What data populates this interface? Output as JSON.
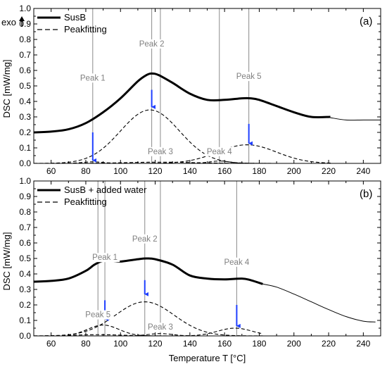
{
  "chart_data": [
    {
      "type": "line",
      "panel_label": "(a)",
      "xlim": [
        50,
        250
      ],
      "ylim": [
        0,
        1.0
      ],
      "x_ticks": [
        60,
        80,
        100,
        120,
        140,
        160,
        180,
        200,
        220,
        240
      ],
      "y_ticks": [
        0.0,
        0.1,
        0.2,
        0.3,
        0.4,
        0.5,
        0.6,
        0.7,
        0.8,
        0.9,
        1.0
      ],
      "ylabel": "DSC [mW/mg]",
      "xlabel": "",
      "exo_label": "exo",
      "legend": [
        "SusB",
        "Peakfitting"
      ],
      "legend_position": "top-left",
      "series": [
        {
          "name": "SusB",
          "style": "solid-thick",
          "x": [
            50,
            60,
            70,
            80,
            90,
            100,
            110,
            115,
            118,
            122,
            130,
            140,
            150,
            160,
            170,
            175,
            180,
            190,
            200,
            210,
            221
          ],
          "y": [
            0.2,
            0.205,
            0.22,
            0.26,
            0.33,
            0.42,
            0.53,
            0.57,
            0.58,
            0.57,
            0.52,
            0.45,
            0.41,
            0.41,
            0.42,
            0.42,
            0.41,
            0.37,
            0.33,
            0.3,
            0.3
          ]
        },
        {
          "name": "SusB tail",
          "style": "solid-thin",
          "x": [
            221,
            230,
            240,
            250
          ],
          "y": [
            0.295,
            0.28,
            0.28,
            0.28
          ]
        },
        {
          "name": "Peakfitting 1",
          "style": "dashed",
          "gauss": {
            "a": 0.01,
            "mu": 84,
            "sigma": 6
          },
          "x_range": [
            50,
            222
          ]
        },
        {
          "name": "Peakfitting 2",
          "style": "dashed",
          "gauss": {
            "a": 0.345,
            "mu": 117,
            "sigma": 17
          },
          "x_range": [
            50,
            222
          ]
        },
        {
          "name": "Peakfitting 3",
          "style": "dashed",
          "gauss": {
            "a": 0.008,
            "mu": 123,
            "sigma": 20
          },
          "x_range": [
            50,
            222
          ]
        },
        {
          "name": "Peakfitting 4",
          "style": "dashed",
          "gauss": {
            "a": 0.015,
            "mu": 157,
            "sigma": 6
          },
          "x_range": [
            50,
            222
          ]
        },
        {
          "name": "Peakfitting 5",
          "style": "dashed",
          "gauss": {
            "a": 0.12,
            "mu": 173,
            "sigma": 17
          },
          "x_range": [
            50,
            222
          ]
        }
      ],
      "peak_markers": [
        {
          "label": "Peak 1",
          "x": 84,
          "arrow_top": 0.2,
          "arrow_tip": 0.01,
          "label_y": 0.535
        },
        {
          "label": "Peak 2",
          "x": 118,
          "arrow_top": 0.475,
          "arrow_tip": 0.355,
          "label_y": 0.755
        },
        {
          "label": "Peak 3",
          "x": 123,
          "label_y": 0.06
        },
        {
          "label": "Peak 4",
          "x": 157,
          "label_y": 0.06
        },
        {
          "label": "Peak 5",
          "x": 174,
          "arrow_top": 0.255,
          "arrow_tip": 0.12,
          "label_y": 0.545
        }
      ]
    },
    {
      "type": "line",
      "panel_label": "(b)",
      "xlim": [
        50,
        250
      ],
      "ylim": [
        0,
        1.0
      ],
      "x_ticks": [
        60,
        80,
        100,
        120,
        140,
        160,
        180,
        200,
        220,
        240
      ],
      "y_ticks": [
        0.0,
        0.1,
        0.2,
        0.3,
        0.4,
        0.5,
        0.6,
        0.7,
        0.8,
        0.9,
        1.0
      ],
      "ylabel": "DSC [mW/mg]",
      "xlabel": "Temperature T [°C]",
      "legend": [
        "SusB + added water",
        "Peakfitting"
      ],
      "legend_position": "top-left",
      "series": [
        {
          "name": "SusB + added water",
          "style": "solid-thick",
          "x": [
            50,
            60,
            70,
            80,
            85,
            90,
            95,
            100,
            110,
            115,
            120,
            130,
            140,
            150,
            160,
            170,
            175,
            182
          ],
          "y": [
            0.35,
            0.355,
            0.37,
            0.42,
            0.46,
            0.485,
            0.485,
            0.48,
            0.495,
            0.5,
            0.495,
            0.46,
            0.39,
            0.37,
            0.365,
            0.37,
            0.36,
            0.335
          ]
        },
        {
          "name": "SusB + added water tail",
          "style": "solid-thin",
          "x": [
            182,
            190,
            200,
            210,
            220,
            230,
            240,
            247
          ],
          "y": [
            0.335,
            0.315,
            0.27,
            0.22,
            0.17,
            0.125,
            0.095,
            0.09
          ]
        },
        {
          "name": "Peakfitting 1",
          "style": "dashed",
          "gauss": {
            "a": 0.07,
            "mu": 90,
            "sigma": 9
          },
          "x_range": [
            50,
            182
          ]
        },
        {
          "name": "Peakfitting 2",
          "style": "dashed",
          "gauss": {
            "a": 0.22,
            "mu": 114,
            "sigma": 17
          },
          "x_range": [
            50,
            182
          ]
        },
        {
          "name": "Peakfitting 3",
          "style": "dashed",
          "gauss": {
            "a": 0.015,
            "mu": 123,
            "sigma": 7
          },
          "x_range": [
            50,
            182
          ]
        },
        {
          "name": "Peakfitting 4",
          "style": "dashed",
          "gauss": {
            "a": 0.05,
            "mu": 166,
            "sigma": 10
          },
          "x_range": [
            50,
            182
          ]
        },
        {
          "name": "Peakfitting 5",
          "style": "dashed",
          "gauss": {
            "a": 0.008,
            "mu": 87,
            "sigma": 14
          },
          "x_range": [
            50,
            182
          ]
        }
      ],
      "peak_markers": [
        {
          "label": "Peak 1",
          "x": 91,
          "arrow_top": 0.23,
          "arrow_tip": 0.1,
          "label_y": 0.49
        },
        {
          "label": "Peak 2",
          "x": 114,
          "arrow_top": 0.36,
          "arrow_tip": 0.26,
          "label_y": 0.61
        },
        {
          "label": "Peak 3",
          "x": 123,
          "label_y": 0.04
        },
        {
          "label": "Peak 4",
          "x": 167,
          "arrow_top": 0.2,
          "arrow_tip": 0.055,
          "label_y": 0.46
        },
        {
          "label": "Peak 5",
          "x": 87,
          "label_y": 0.12
        }
      ]
    }
  ]
}
